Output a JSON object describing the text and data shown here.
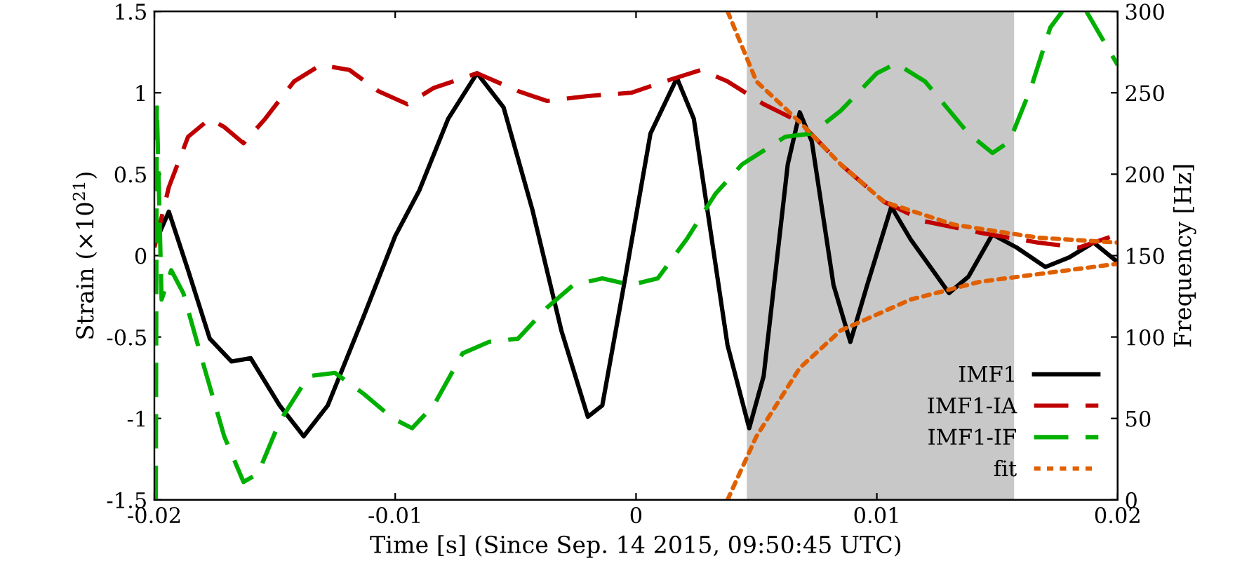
{
  "chart_data": {
    "type": "line",
    "xlabel": "Time [s] (Since Sep. 14 2015, 09:50:45 UTC)",
    "ylabel": "Strain (×10$^{21}$)",
    "y2label": "Frequency [Hz]",
    "xlim": [
      -0.02,
      0.02
    ],
    "xticks": [
      -0.02,
      -0.01,
      0,
      0.01,
      0.02
    ],
    "ylim": [
      -1.5,
      1.5
    ],
    "yticks": [
      -1.5,
      -1,
      -0.5,
      0,
      0.5,
      1,
      1.5
    ],
    "y2lim": [
      0,
      300
    ],
    "y2ticks": [
      0,
      50,
      100,
      150,
      200,
      250,
      300
    ],
    "grid": false,
    "legend": "bottom right",
    "marker": "none",
    "bands": [
      {
        "axis": "x",
        "from": 0.0046,
        "to": 0.0157,
        "color": "#c8c8c8"
      }
    ],
    "series": [
      {
        "name": "IMF1",
        "color": "#000000",
        "line_style": "solid",
        "x": [
          -0.0199,
          -0.0194,
          -0.0186,
          -0.0177,
          -0.0168,
          -0.016,
          -0.0148,
          -0.0138,
          -0.0128,
          -0.0113,
          -0.01,
          -0.009,
          -0.0078,
          -0.0066,
          -0.0055,
          -0.0043,
          -0.0031,
          -0.002,
          -0.0014,
          -0.0005,
          0.0006,
          0.0017,
          0.0024,
          0.0038,
          0.0047,
          0.0053,
          0.0063,
          0.0068,
          0.0073,
          0.0082,
          0.0089,
          0.0096,
          0.0106,
          0.0114,
          0.013,
          0.0138,
          0.0148,
          0.0158,
          0.017,
          0.018,
          0.019,
          0.02
        ],
        "values": [
          0.1,
          0.27,
          -0.09,
          -0.51,
          -0.65,
          -0.63,
          -0.92,
          -1.11,
          -0.92,
          -0.37,
          0.12,
          0.4,
          0.84,
          1.12,
          0.91,
          0.28,
          -0.46,
          -0.99,
          -0.92,
          -0.18,
          0.75,
          1.09,
          0.84,
          -0.55,
          -1.06,
          -0.74,
          0.56,
          0.88,
          0.7,
          -0.18,
          -0.53,
          -0.18,
          0.3,
          0.1,
          -0.23,
          -0.13,
          0.13,
          0.05,
          -0.07,
          -0.01,
          0.08,
          -0.04
        ]
      },
      {
        "name": "IMF1-IA",
        "color": "#c00000",
        "line_style": "dashed",
        "x": [
          -0.02,
          -0.0194,
          -0.0186,
          -0.0177,
          -0.0171,
          -0.0163,
          -0.0154,
          -0.0142,
          -0.0131,
          -0.0119,
          -0.0107,
          -0.0095,
          -0.0084,
          -0.0066,
          -0.0049,
          -0.0037,
          -0.002,
          -0.0002,
          0.0012,
          0.0027,
          0.0038,
          0.0053,
          0.0068,
          0.0085,
          0.0103,
          0.012,
          0.0143,
          0.0167,
          0.0184,
          0.02
        ],
        "values": [
          0.05,
          0.42,
          0.73,
          0.84,
          0.79,
          0.69,
          0.84,
          1.07,
          1.17,
          1.14,
          1.01,
          0.93,
          1.03,
          1.12,
          1.01,
          0.95,
          0.98,
          1.0,
          1.07,
          1.14,
          1.07,
          0.93,
          0.82,
          0.56,
          0.33,
          0.21,
          0.14,
          0.08,
          0.05,
          0.13
        ]
      },
      {
        "name": "IMF1-IF",
        "color": "#00b000",
        "line_style": "dashed",
        "axis": "y2",
        "x": [
          -0.01994,
          -0.0199,
          -0.0197,
          -0.0193,
          -0.0188,
          -0.018,
          -0.0171,
          -0.0163,
          -0.0157,
          -0.0148,
          -0.0136,
          -0.0125,
          -0.0113,
          -0.0101,
          -0.0093,
          -0.0084,
          -0.0072,
          -0.0061,
          -0.0049,
          -0.0037,
          -0.0026,
          -0.0014,
          -0.0002,
          0.0009,
          0.0021,
          0.0033,
          0.0044,
          0.0062,
          0.0073,
          0.0085,
          0.01,
          0.0108,
          0.012,
          0.0138,
          0.0148,
          0.0155,
          0.0164,
          0.0172,
          0.0177,
          0.0182,
          0.0187,
          0.02
        ],
        "values": [
          0,
          243,
          123,
          141,
          127,
          85,
          39,
          11,
          16,
          48,
          76,
          78,
          65,
          50,
          44,
          58,
          90,
          97,
          99,
          118,
          132,
          136,
          132,
          136,
          160,
          188,
          206,
          223,
          225,
          239,
          262,
          268,
          257,
          225,
          213,
          220,
          253,
          290,
          300,
          null,
          300,
          267
        ]
      },
      {
        "name": "fit",
        "color": "#e06000",
        "line_style": "dotted",
        "axis": "y2",
        "x": [
          0.0038,
          0.005,
          0.0068,
          0.0085,
          0.0103,
          0.0132,
          0.0167,
          0.02,
          0.01,
          0.0038,
          0.005,
          0.0068,
          0.0085,
          0.0114,
          0.0143,
          0.02
        ],
        "values": [
          300,
          257,
          232,
          206,
          183,
          169,
          161,
          158,
          null,
          0,
          39,
          81,
          104,
          123,
          134,
          145
        ]
      }
    ]
  }
}
